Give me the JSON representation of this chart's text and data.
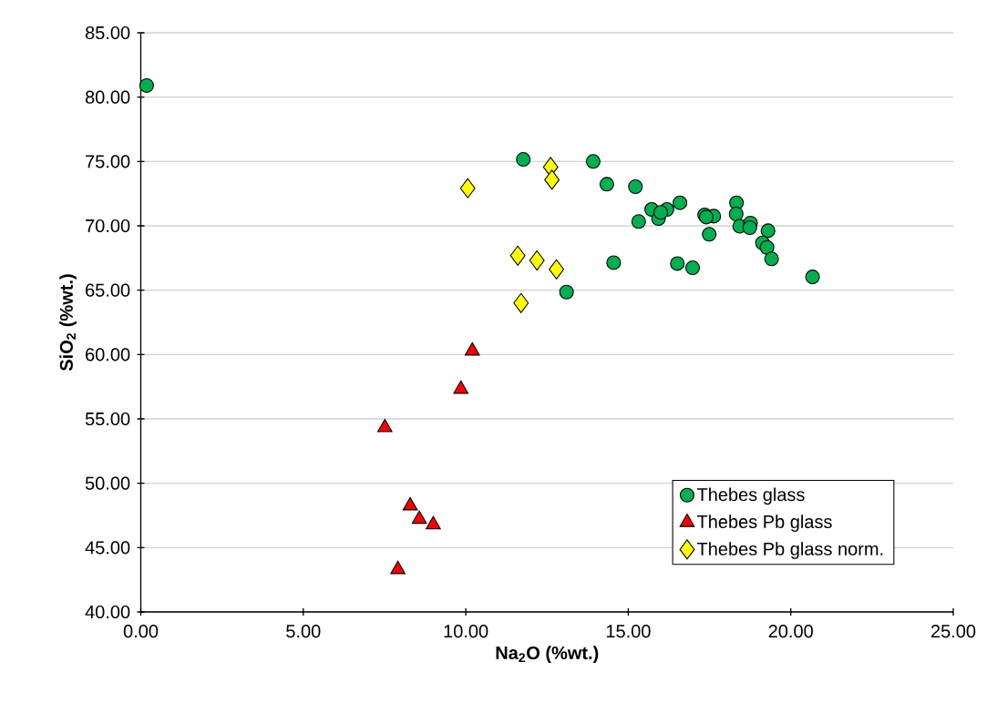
{
  "chart_data": {
    "type": "scatter",
    "xlabel": "Na$_{2}$O (%wt.)",
    "ylabel": "SiO$_{2}$ (%wt.)",
    "xlim": [
      0,
      25
    ],
    "ylim": [
      40,
      85
    ],
    "xticks": [
      {
        "value": 0,
        "label": "0.00"
      },
      {
        "value": 5,
        "label": "5.00"
      },
      {
        "value": 10,
        "label": "10.00"
      },
      {
        "value": 15,
        "label": "15.00"
      },
      {
        "value": 20,
        "label": "20.00"
      },
      {
        "value": 25,
        "label": "25.00"
      }
    ],
    "yticks": [
      {
        "value": 40,
        "label": "40.00"
      },
      {
        "value": 45,
        "label": "45.00"
      },
      {
        "value": 50,
        "label": "50.00"
      },
      {
        "value": 55,
        "label": "55.00"
      },
      {
        "value": 60,
        "label": "60.00"
      },
      {
        "value": 65,
        "label": "65.00"
      },
      {
        "value": 70,
        "label": "70.00"
      },
      {
        "value": 75,
        "label": "75.00"
      },
      {
        "value": 80,
        "label": "80.00"
      },
      {
        "value": 85,
        "label": "85.00"
      }
    ],
    "grid": "y",
    "legend": "bottom right",
    "series": [
      {
        "name": "Thebes glass",
        "color": "#00b050",
        "marker": "circle",
        "x": [
          0.18,
          11.77,
          13.92,
          14.34,
          15.22,
          15.32,
          15.72,
          15.93,
          16.19,
          16.0,
          16.59,
          17.35,
          17.63,
          17.4,
          17.49,
          18.33,
          18.32,
          18.43,
          18.76,
          18.74,
          19.3,
          19.13,
          19.27,
          19.41,
          14.55,
          16.51,
          16.98,
          20.67,
          13.1
        ],
        "values": [
          80.9,
          75.16,
          75.0,
          73.23,
          73.04,
          70.33,
          71.27,
          70.56,
          71.27,
          71.04,
          71.79,
          70.85,
          70.75,
          70.68,
          69.34,
          71.79,
          70.92,
          69.97,
          70.21,
          69.86,
          69.62,
          68.67,
          68.32,
          67.43,
          67.14,
          67.07,
          66.74,
          66.03,
          64.85
        ]
      },
      {
        "name": "Thebes Pb glass",
        "color": "#ff0000",
        "marker": "triangle",
        "x": [
          10.2,
          9.85,
          7.51,
          8.29,
          8.57,
          9.0,
          7.91
        ],
        "values": [
          60.28,
          57.31,
          54.33,
          48.25,
          47.21,
          46.78,
          43.3
        ]
      },
      {
        "name": "Thebes Pb glass norm.",
        "color": "#ffff00",
        "marker": "diamond",
        "x": [
          12.61,
          12.65,
          11.6,
          12.19,
          12.79,
          11.7,
          10.06
        ],
        "values": [
          74.57,
          73.58,
          67.68,
          67.31,
          66.62,
          64.0,
          72.92
        ]
      }
    ]
  }
}
